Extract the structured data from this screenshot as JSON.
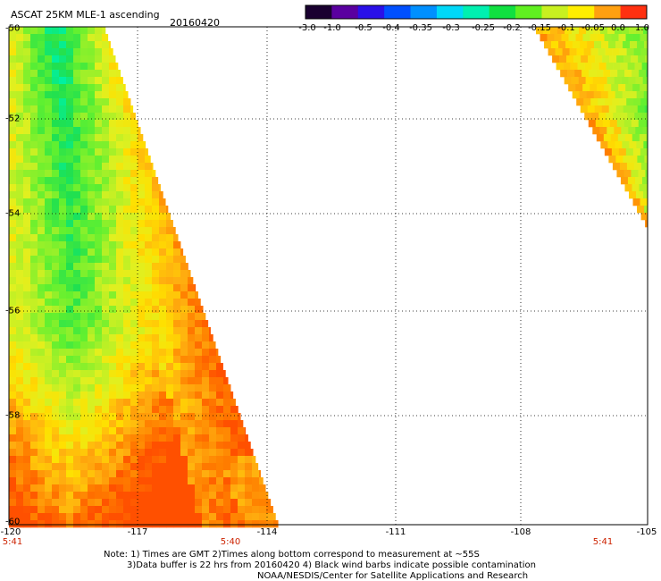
{
  "header": {
    "title": "ASCAT 25KM MLE-1 ascending",
    "date": "20160420"
  },
  "colorbar": {
    "labels": [
      "-3.0",
      "-1.0",
      "-0.5",
      "-0.4",
      "-0.35",
      "-0.3",
      "-0.25",
      "-0.2",
      "-0.15",
      "-0.1",
      "-0.05",
      "0.0",
      "1.0"
    ],
    "colors": [
      "#1a0030",
      "#5a00a0",
      "#2a10e8",
      "#0050ff",
      "#0090ff",
      "#00d8f8",
      "#00f0b0",
      "#10e040",
      "#60f020",
      "#c8f020",
      "#ffee00",
      "#ffa010",
      "#ff3010"
    ]
  },
  "axes": {
    "y_labels": [
      "-50",
      "-52",
      "-54",
      "-56",
      "-58",
      "-60"
    ],
    "x_labels": [
      "-120",
      "-117",
      "-114",
      "-111",
      "-108",
      "-105"
    ],
    "time_labels": [
      "5:41",
      "5:40",
      "5:41"
    ]
  },
  "notes": {
    "line1": "Note: 1) Times are GMT 2)Times along bottom correspond to measurement at ~55S",
    "line2": "3)Data buffer is 22 hrs from 20160420 4) Black wind barbs indicate possible contamination",
    "line3": "NOAA/NESDIS/Center for Satellite Applications and Research"
  }
}
